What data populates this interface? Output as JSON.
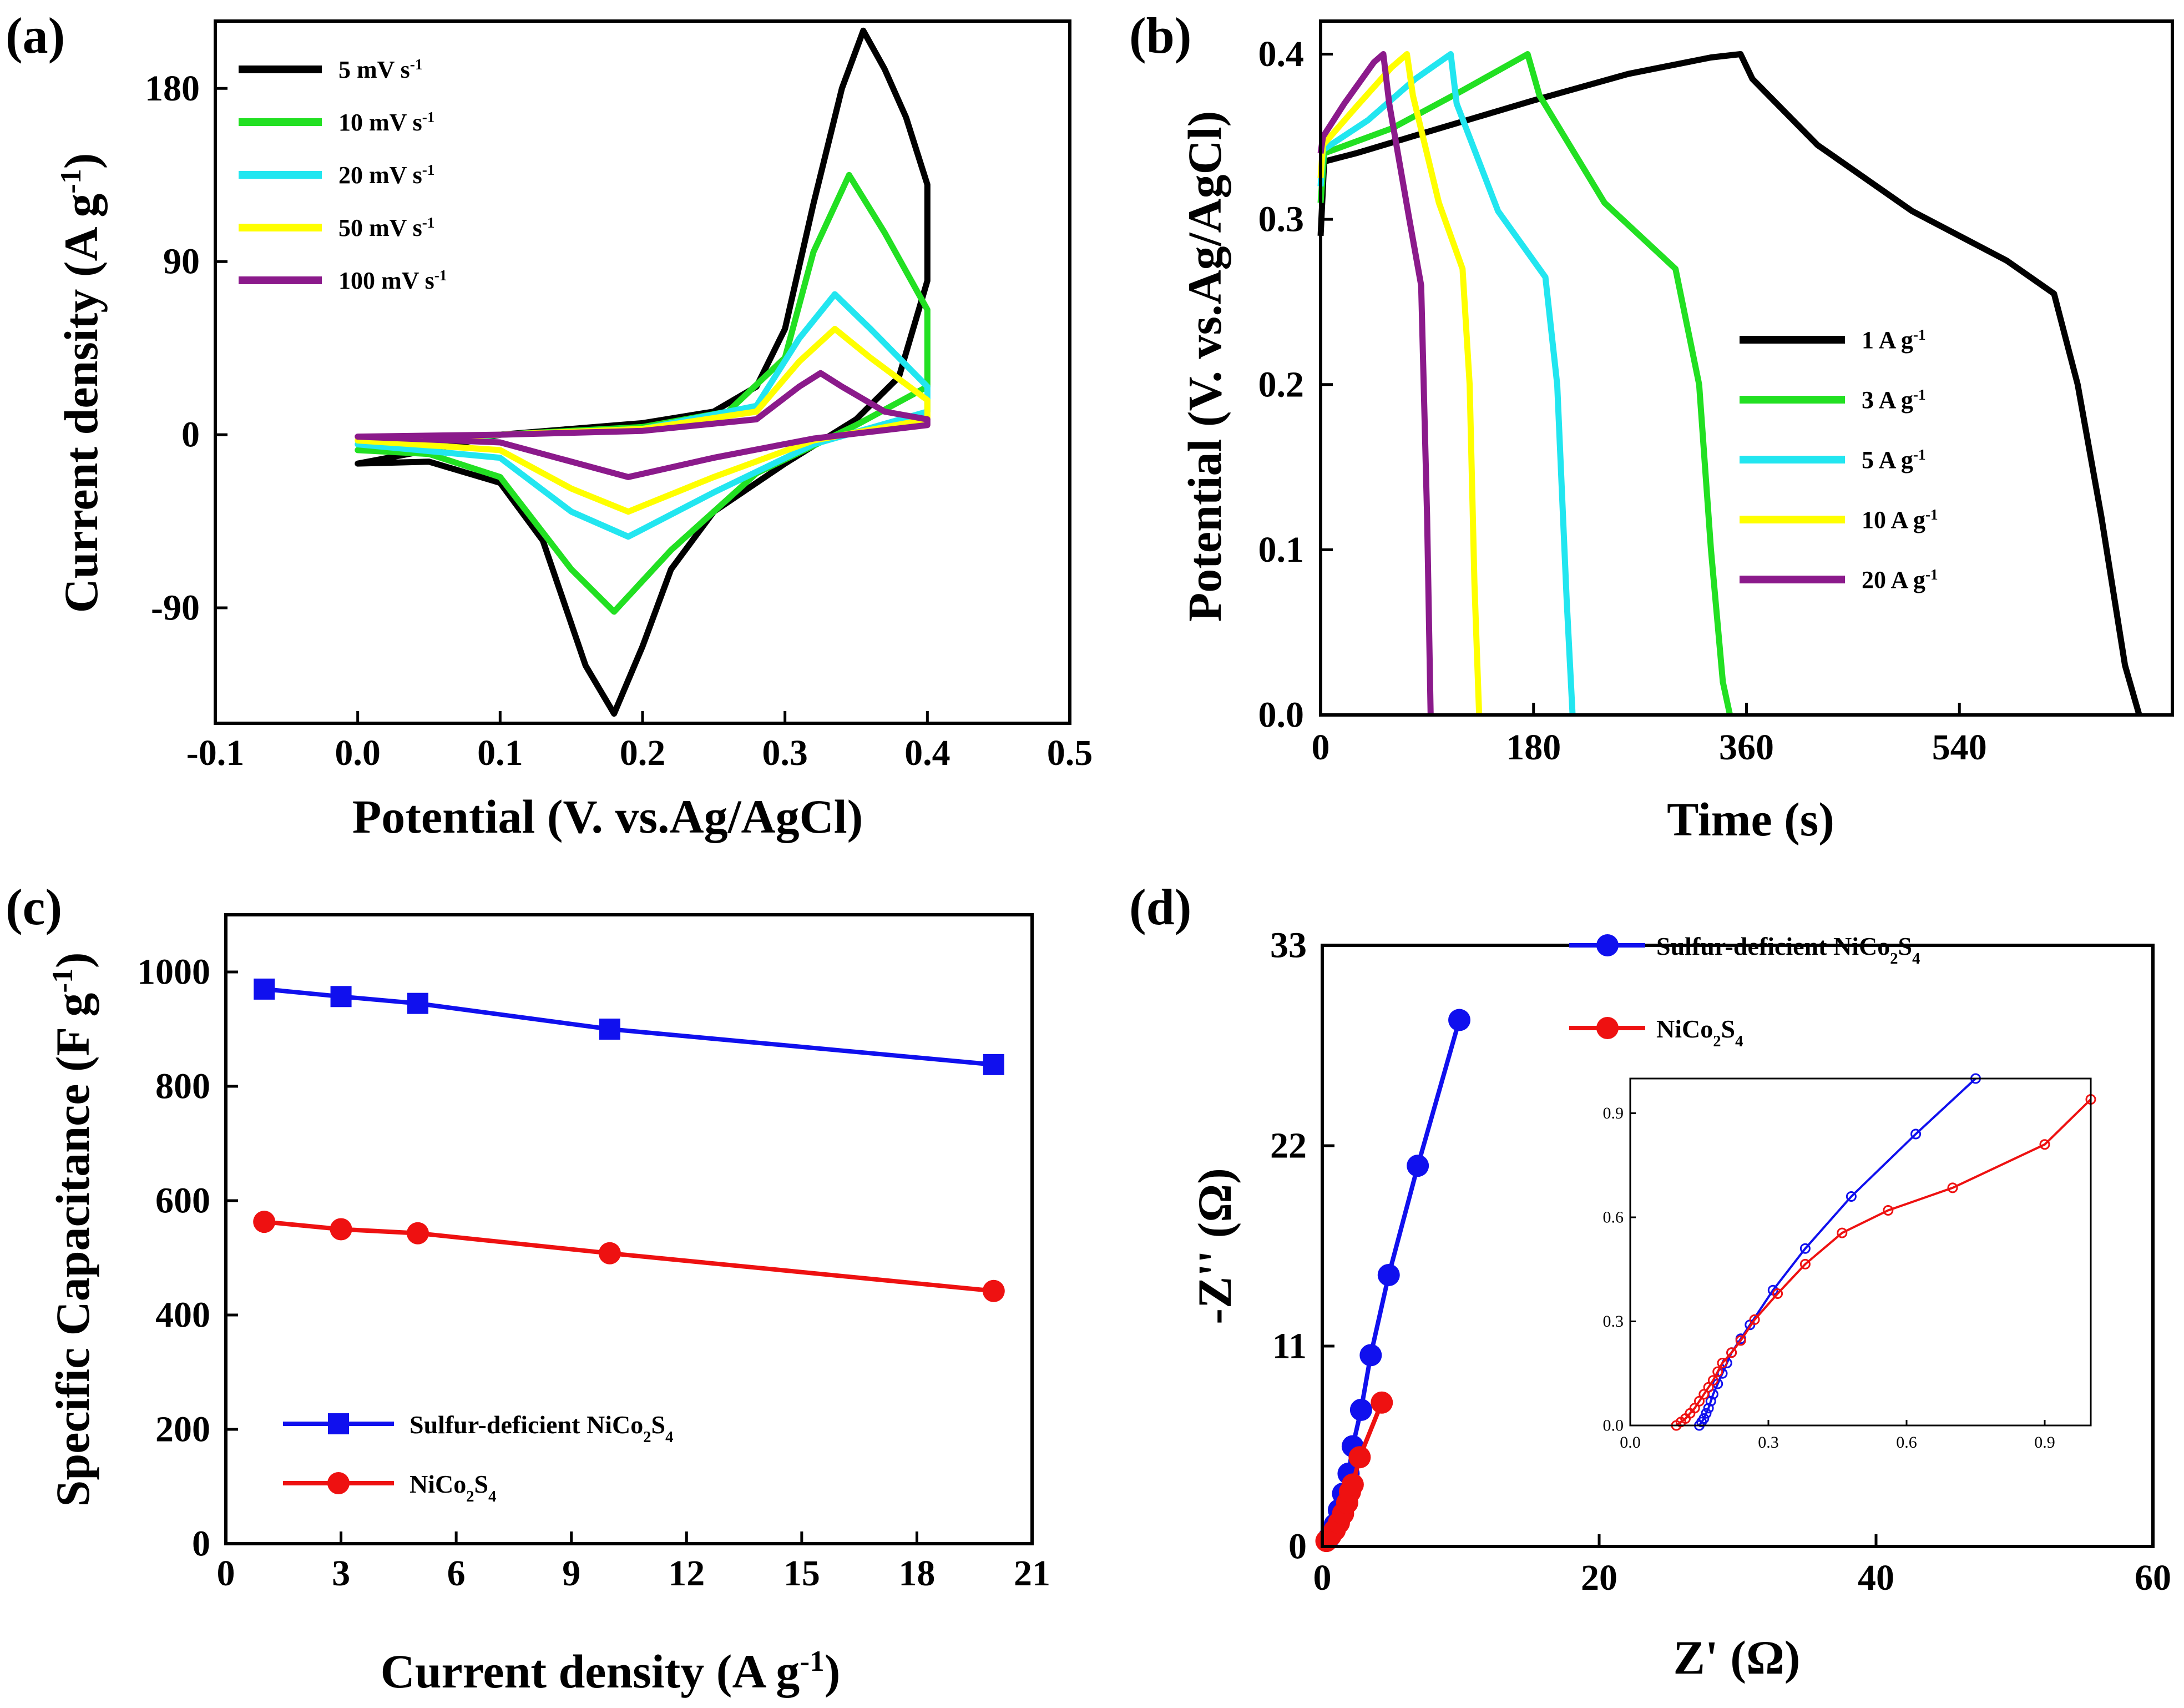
{
  "colors": {
    "black": "#000000",
    "green": "#22e022",
    "cyan": "#22e6f0",
    "yellow": "#ffff00",
    "purple": "#8b1a8b",
    "blue": "#1010ee",
    "red": "#ee1111"
  },
  "chart_data": [
    {
      "panel": "(a)",
      "type": "line",
      "xlabel": "Potential (V. vs.Ag/AgCl)",
      "ylabel": "Current density (A g-1)",
      "xlim": [
        -0.1,
        0.5
      ],
      "ylim": [
        -150,
        215
      ],
      "xticks": [
        "-0.1",
        "0.0",
        "0.1",
        "0.2",
        "0.3",
        "0.4",
        "0.5"
      ],
      "yticks": [
        "-90",
        "0",
        "90",
        "180"
      ],
      "legend_position": "top-left",
      "series": [
        {
          "name": "5 mV s-1",
          "color": "black",
          "x": [
            0.0,
            0.05,
            0.1,
            0.15,
            0.2,
            0.25,
            0.28,
            0.3,
            0.32,
            0.34,
            0.355,
            0.37,
            0.385,
            0.4,
            0.4,
            0.38,
            0.35,
            0.3,
            0.25,
            0.22,
            0.2,
            0.18,
            0.16,
            0.13,
            0.1,
            0.05,
            0.0
          ],
          "y": [
            -15,
            -8,
            0,
            3,
            6,
            12,
            25,
            55,
            120,
            180,
            210,
            190,
            165,
            130,
            80,
            30,
            8,
            -15,
            -40,
            -70,
            -110,
            -145,
            -120,
            -55,
            -25,
            -14,
            -15
          ]
        },
        {
          "name": "10 mV s-1",
          "color": "green",
          "x": [
            0.0,
            0.1,
            0.2,
            0.26,
            0.3,
            0.32,
            0.345,
            0.37,
            0.4,
            0.4,
            0.35,
            0.28,
            0.22,
            0.18,
            0.15,
            0.1,
            0.05,
            0.0
          ],
          "y": [
            -8,
            0,
            4,
            12,
            40,
            95,
            135,
            105,
            65,
            25,
            5,
            -20,
            -60,
            -92,
            -70,
            -22,
            -10,
            -8
          ]
        },
        {
          "name": "20 mV s-1",
          "color": "cyan",
          "x": [
            0.0,
            0.1,
            0.2,
            0.28,
            0.31,
            0.335,
            0.36,
            0.4,
            0.4,
            0.32,
            0.25,
            0.19,
            0.15,
            0.1,
            0.0
          ],
          "y": [
            -5,
            0,
            3,
            15,
            50,
            73,
            55,
            25,
            12,
            -5,
            -30,
            -53,
            -40,
            -12,
            -5
          ]
        },
        {
          "name": "50 mV s-1",
          "color": "yellow",
          "x": [
            0.0,
            0.1,
            0.2,
            0.28,
            0.31,
            0.335,
            0.36,
            0.4,
            0.4,
            0.32,
            0.25,
            0.19,
            0.15,
            0.1,
            0.0
          ],
          "y": [
            -3,
            0,
            3,
            12,
            38,
            55,
            40,
            18,
            8,
            -3,
            -22,
            -40,
            -28,
            -8,
            -3
          ]
        },
        {
          "name": "100 mV s-1",
          "color": "purple",
          "x": [
            0.0,
            0.1,
            0.2,
            0.28,
            0.31,
            0.325,
            0.34,
            0.37,
            0.4,
            0.4,
            0.32,
            0.25,
            0.19,
            0.15,
            0.1,
            0.0
          ],
          "y": [
            -1,
            0,
            2,
            8,
            25,
            32,
            25,
            12,
            8,
            5,
            -2,
            -12,
            -22,
            -14,
            -4,
            -1
          ]
        }
      ]
    },
    {
      "panel": "(b)",
      "type": "line",
      "xlabel": "Time (s)",
      "ylabel": "Potential (V. vs.Ag/AgCl)",
      "xlim": [
        0,
        720
      ],
      "ylim": [
        0,
        0.42
      ],
      "xticks": [
        "0",
        "180",
        "360",
        "540"
      ],
      "yticks": [
        "0.0",
        "0.1",
        "0.2",
        "0.3",
        "0.4"
      ],
      "legend_position": "right",
      "series": [
        {
          "name": "1 A g-1",
          "color": "black",
          "x": [
            0,
            3,
            30,
            100,
            180,
            260,
            330,
            355,
            365,
            420,
            500,
            580,
            620,
            640,
            660,
            680,
            692
          ],
          "y": [
            0.29,
            0.335,
            0.34,
            0.355,
            0.372,
            0.388,
            0.398,
            0.4,
            0.385,
            0.345,
            0.305,
            0.275,
            0.255,
            0.2,
            0.12,
            0.03,
            0
          ]
        },
        {
          "name": "3 A g-1",
          "color": "green",
          "x": [
            0,
            3,
            60,
            120,
            175,
            185,
            240,
            300,
            320,
            330,
            340,
            346
          ],
          "y": [
            0.31,
            0.34,
            0.355,
            0.378,
            0.4,
            0.375,
            0.31,
            0.27,
            0.2,
            0.1,
            0.02,
            0
          ]
        },
        {
          "name": "5 A g-1",
          "color": "cyan",
          "x": [
            0,
            2,
            40,
            80,
            110,
            115,
            150,
            190,
            200,
            208,
            213
          ],
          "y": [
            0.32,
            0.342,
            0.36,
            0.385,
            0.4,
            0.37,
            0.305,
            0.265,
            0.2,
            0.07,
            0
          ]
        },
        {
          "name": "10 A g-1",
          "color": "yellow",
          "x": [
            0,
            2,
            30,
            60,
            73,
            78,
            100,
            120,
            126,
            130,
            134
          ],
          "y": [
            0.325,
            0.345,
            0.368,
            0.392,
            0.4,
            0.375,
            0.31,
            0.27,
            0.2,
            0.08,
            0
          ]
        },
        {
          "name": "20 A g-1",
          "color": "purple",
          "x": [
            0,
            2,
            20,
            45,
            53,
            58,
            75,
            85,
            90,
            93
          ],
          "y": [
            0.34,
            0.35,
            0.37,
            0.395,
            0.4,
            0.37,
            0.3,
            0.26,
            0.12,
            0
          ]
        }
      ]
    },
    {
      "panel": "(c)",
      "type": "line",
      "xlabel": "Current density (A g-1)",
      "ylabel": "Specific Capacitance (F g-1)",
      "xlim": [
        0,
        21
      ],
      "ylim": [
        0,
        1100
      ],
      "xticks": [
        "0",
        "3",
        "6",
        "9",
        "12",
        "15",
        "18",
        "21"
      ],
      "yticks": [
        "0",
        "200",
        "400",
        "600",
        "800",
        "1000"
      ],
      "legend_position": "bottom-left",
      "series": [
        {
          "name": "Sulfur-deficient NiCo2S4",
          "color": "blue",
          "marker": "square",
          "x": [
            1,
            3,
            5,
            10,
            20
          ],
          "y": [
            970,
            957,
            945,
            900,
            838
          ]
        },
        {
          "name": "NiCo2S4",
          "color": "red",
          "marker": "circle",
          "x": [
            1,
            3,
            5,
            10,
            20
          ],
          "y": [
            563,
            550,
            543,
            508,
            442
          ]
        }
      ]
    },
    {
      "panel": "(d)",
      "type": "scatter",
      "xlabel": "Z' (Ω)",
      "ylabel": "-Z'' (Ω)",
      "xlim": [
        0,
        60
      ],
      "ylim": [
        0,
        33
      ],
      "xticks": [
        "0",
        "20",
        "40",
        "60"
      ],
      "yticks": [
        "0",
        "11",
        "22",
        "33"
      ],
      "legend_position": "top-right",
      "series": [
        {
          "name": "Sulfur-deficient NiCo2S4",
          "color": "blue",
          "marker": "circle",
          "x": [
            0.5,
            0.9,
            1.2,
            1.5,
            1.9,
            2.2,
            2.8,
            3.5,
            4.8,
            6.9,
            9.9
          ],
          "y": [
            0.5,
            1.2,
            2.0,
            2.9,
            4.0,
            5.5,
            7.5,
            10.5,
            14.9,
            20.9,
            28.9
          ]
        },
        {
          "name": "NiCo2S4",
          "color": "red",
          "marker": "circle",
          "x": [
            0.3,
            0.6,
            0.9,
            1.2,
            1.5,
            1.8,
            2.0,
            2.2,
            2.7,
            4.3
          ],
          "y": [
            0.3,
            0.6,
            0.9,
            1.3,
            1.8,
            2.4,
            3.0,
            3.4,
            4.9,
            7.9
          ]
        }
      ],
      "inset": {
        "xlim": [
          0,
          1.0
        ],
        "ylim": [
          0,
          1.0
        ],
        "xticks": [
          "0.0",
          "0.3",
          "0.6",
          "0.9"
        ],
        "yticks": [
          "0.0",
          "0.3",
          "0.6",
          "0.9"
        ],
        "series": [
          {
            "name": "Sulfur-deficient NiCo2S4",
            "color": "blue",
            "x": [
              0.15,
              0.155,
              0.16,
              0.165,
              0.17,
              0.175,
              0.18,
              0.19,
              0.2,
              0.21,
              0.22,
              0.24,
              0.26,
              0.31,
              0.38,
              0.48,
              0.62,
              0.75
            ],
            "y": [
              0.0,
              0.01,
              0.02,
              0.035,
              0.05,
              0.07,
              0.09,
              0.12,
              0.15,
              0.18,
              0.21,
              0.25,
              0.29,
              0.39,
              0.51,
              0.66,
              0.84,
              1.0
            ]
          },
          {
            "name": "NiCo2S4",
            "color": "red",
            "x": [
              0.1,
              0.11,
              0.12,
              0.13,
              0.14,
              0.15,
              0.16,
              0.17,
              0.18,
              0.19,
              0.2,
              0.22,
              0.24,
              0.27,
              0.32,
              0.38,
              0.46,
              0.56,
              0.7,
              0.9,
              1.0
            ],
            "y": [
              0.0,
              0.01,
              0.02,
              0.035,
              0.05,
              0.07,
              0.09,
              0.11,
              0.13,
              0.155,
              0.18,
              0.21,
              0.245,
              0.305,
              0.38,
              0.465,
              0.555,
              0.62,
              0.685,
              0.81,
              0.94
            ]
          }
        ]
      }
    }
  ]
}
